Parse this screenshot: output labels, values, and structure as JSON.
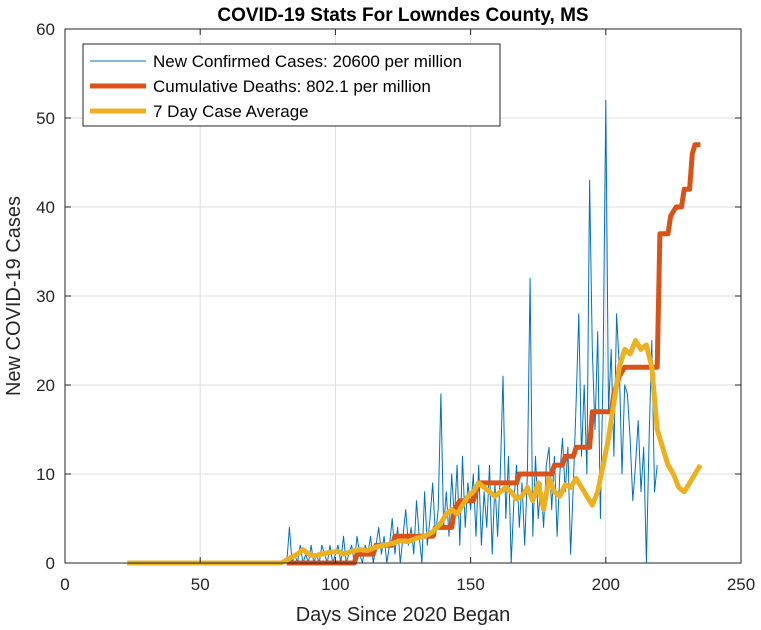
{
  "chart_data": {
    "type": "line",
    "title": "COVID-19 Stats For Lowndes County, MS",
    "xlabel": "Days Since 2020 Began",
    "ylabel": "New COVID-19 Cases",
    "xlim": [
      0,
      250
    ],
    "ylim": [
      0,
      60
    ],
    "xticks": [
      0,
      50,
      100,
      150,
      200,
      250
    ],
    "yticks": [
      0,
      10,
      20,
      30,
      40,
      50,
      60
    ],
    "grid": true,
    "legend_position": "top-left",
    "series": [
      {
        "name": "New Confirmed Cases: 20600 per million",
        "color": "#0072BD",
        "width": "thin",
        "x_start": 82,
        "values": [
          0,
          4,
          0,
          1,
          0,
          2,
          0,
          1,
          0,
          2,
          0,
          1,
          0,
          2,
          1,
          0,
          2,
          0,
          1,
          2,
          0,
          3,
          0,
          1,
          2,
          0,
          3,
          1,
          0,
          2,
          1,
          3,
          0,
          2,
          4,
          1,
          3,
          0,
          2,
          5,
          1,
          4,
          0,
          3,
          6,
          2,
          4,
          1,
          7,
          3,
          0,
          8,
          2,
          5,
          9,
          3,
          6,
          19,
          4,
          8,
          3,
          10,
          5,
          11,
          2,
          12,
          4,
          9,
          6,
          10,
          3,
          11,
          2,
          8,
          4,
          11,
          1,
          9,
          3,
          10,
          21,
          5,
          12,
          0,
          7,
          11,
          4,
          9,
          2,
          10,
          32,
          3,
          12,
          5,
          9,
          4,
          11,
          13,
          6,
          12,
          3,
          10,
          14,
          8,
          13,
          1,
          9,
          18,
          28,
          12,
          20,
          10,
          43,
          24,
          15,
          26,
          5,
          22,
          52,
          17,
          24,
          12,
          28,
          22,
          10,
          20,
          19,
          14,
          7,
          11,
          16,
          8,
          13,
          0,
          14,
          25,
          8,
          11
        ]
      },
      {
        "name": "Cumulative Deaths: 802.1 per million",
        "color": "#D95319",
        "width": "thick",
        "points": [
          [
            82,
            0
          ],
          [
            107,
            0
          ],
          [
            108,
            1
          ],
          [
            114,
            1
          ],
          [
            115,
            2
          ],
          [
            121,
            2
          ],
          [
            122,
            3
          ],
          [
            136,
            3
          ],
          [
            137,
            4
          ],
          [
            143,
            4
          ],
          [
            144,
            6
          ],
          [
            146,
            7
          ],
          [
            151,
            7
          ],
          [
            152,
            8
          ],
          [
            153,
            9
          ],
          [
            167,
            9
          ],
          [
            168,
            10
          ],
          [
            180,
            10
          ],
          [
            181,
            11
          ],
          [
            184,
            11
          ],
          [
            185,
            12
          ],
          [
            188,
            12
          ],
          [
            189,
            13
          ],
          [
            194,
            13
          ],
          [
            195,
            17
          ],
          [
            202,
            17
          ],
          [
            203,
            19
          ],
          [
            205,
            21
          ],
          [
            207,
            22
          ],
          [
            219,
            22
          ],
          [
            220,
            37
          ],
          [
            223,
            37
          ],
          [
            224,
            39
          ],
          [
            226,
            40
          ],
          [
            228,
            40
          ],
          [
            229,
            42
          ],
          [
            231,
            42
          ],
          [
            232,
            46
          ],
          [
            233,
            47
          ],
          [
            235,
            47
          ]
        ]
      },
      {
        "name": "7 Day Case Average",
        "color": "#EDB120",
        "width": "thick",
        "points": [
          [
            23,
            0
          ],
          [
            80,
            0
          ],
          [
            83,
            0.5
          ],
          [
            86,
            1
          ],
          [
            88,
            1.5
          ],
          [
            90,
            1
          ],
          [
            92,
            0.8
          ],
          [
            95,
            1
          ],
          [
            98,
            1.2
          ],
          [
            101,
            1.3
          ],
          [
            103,
            1
          ],
          [
            106,
            1.3
          ],
          [
            109,
            1.5
          ],
          [
            112,
            1.4
          ],
          [
            115,
            1.8
          ],
          [
            118,
            2
          ],
          [
            121,
            2.2
          ],
          [
            124,
            2.5
          ],
          [
            127,
            2.4
          ],
          [
            130,
            2.8
          ],
          [
            133,
            3
          ],
          [
            136,
            3.5
          ],
          [
            139,
            4.5
          ],
          [
            141,
            5.5
          ],
          [
            143,
            6
          ],
          [
            145,
            5.5
          ],
          [
            147,
            6.5
          ],
          [
            149,
            7.5
          ],
          [
            151,
            8
          ],
          [
            153,
            9
          ],
          [
            155,
            8.5
          ],
          [
            157,
            8
          ],
          [
            159,
            7.5
          ],
          [
            161,
            8
          ],
          [
            163,
            8.5
          ],
          [
            165,
            8
          ],
          [
            167,
            7.2
          ],
          [
            169,
            7.5
          ],
          [
            171,
            8.5
          ],
          [
            173,
            7
          ],
          [
            175,
            9
          ],
          [
            177,
            6
          ],
          [
            179,
            9.5
          ],
          [
            181,
            8
          ],
          [
            183,
            7.5
          ],
          [
            185,
            8.8
          ],
          [
            187,
            8.5
          ],
          [
            189,
            9.5
          ],
          [
            191,
            8.5
          ],
          [
            193,
            7.5
          ],
          [
            195,
            6.5
          ],
          [
            197,
            8
          ],
          [
            199,
            11
          ],
          [
            201,
            14
          ],
          [
            203,
            18
          ],
          [
            205,
            22
          ],
          [
            207,
            24
          ],
          [
            209,
            23.5
          ],
          [
            211,
            25
          ],
          [
            213,
            24
          ],
          [
            215,
            24.5
          ],
          [
            217,
            22
          ],
          [
            219,
            15
          ],
          [
            221,
            13
          ],
          [
            223,
            11
          ],
          [
            225,
            10
          ],
          [
            227,
            8.5
          ],
          [
            229,
            8
          ],
          [
            231,
            9
          ],
          [
            233,
            10
          ],
          [
            235,
            11
          ]
        ]
      }
    ]
  }
}
